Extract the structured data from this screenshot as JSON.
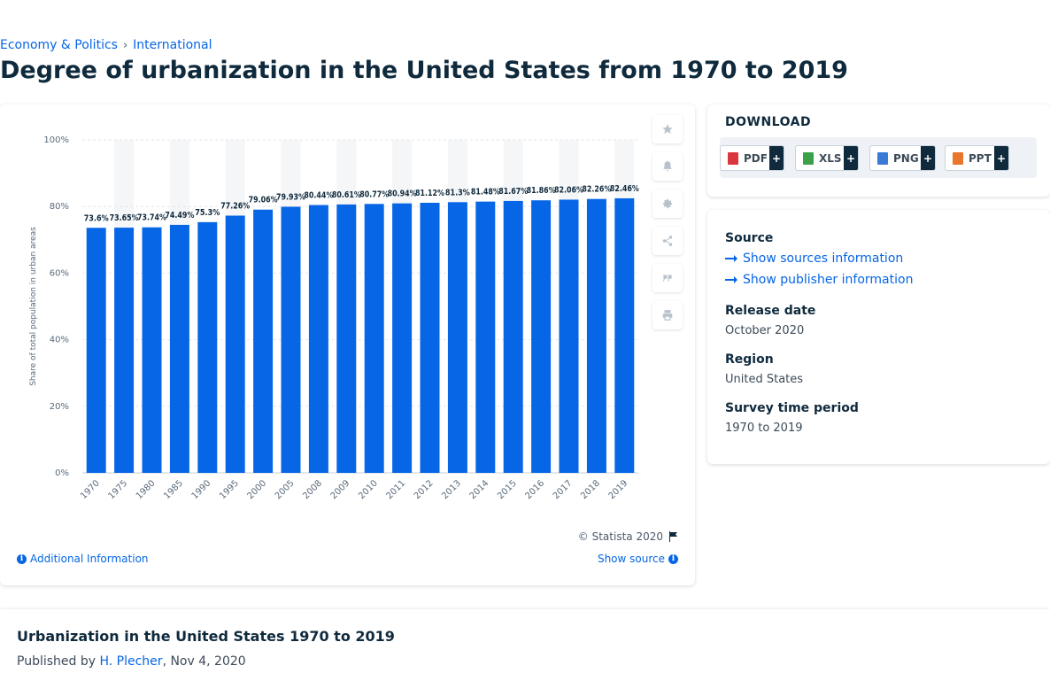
{
  "breadcrumb": {
    "items": [
      "Economy & Politics",
      "International"
    ],
    "separator": "›"
  },
  "page_title": "Degree of urbanization in the United States from 1970 to 2019",
  "chart_footer": {
    "copyright": "© Statista 2020",
    "additional_info": "Additional Information",
    "show_source": "Show source"
  },
  "side_tools": [
    "star-icon",
    "bell-icon",
    "gear-icon",
    "share-icon",
    "quote-icon",
    "print-icon"
  ],
  "download": {
    "title": "DOWNLOAD",
    "buttons": [
      {
        "label": "PDF",
        "icon": "pdf-file-icon",
        "color": "#d9363e",
        "plus": "+"
      },
      {
        "label": "XLS",
        "icon": "xls-file-icon",
        "color": "#3aa14a",
        "plus": "+"
      },
      {
        "label": "PNG",
        "icon": "png-file-icon",
        "color": "#3a7bd5",
        "plus": "+"
      },
      {
        "label": "PPT",
        "icon": "ppt-file-icon",
        "color": "#e8762c",
        "plus": "+"
      }
    ]
  },
  "meta": {
    "source_label": "Source",
    "show_sources": "Show sources information",
    "show_publisher": "Show publisher information",
    "release_label": "Release date",
    "release_value": "October 2020",
    "region_label": "Region",
    "region_value": "United States",
    "period_label": "Survey time period",
    "period_value": "1970 to 2019"
  },
  "bottom": {
    "title": "Urbanization in the United States 1970 to 2019",
    "published_prefix": "Published by",
    "author": "H. Plecher",
    "date": ", Nov 4, 2020"
  },
  "colors": {
    "bar": "#0666e5",
    "accent": "#0666e5",
    "text": "#0f2a3d",
    "band": "#f5f6f8"
  },
  "chart_data": {
    "type": "bar",
    "title": "",
    "xlabel": "",
    "ylabel": "Share of total population in urban areas",
    "ylim": [
      0,
      100
    ],
    "y_ticks": [
      "0%",
      "20%",
      "40%",
      "60%",
      "80%",
      "100%"
    ],
    "y_tick_values": [
      0,
      20,
      40,
      60,
      80,
      100
    ],
    "grid": true,
    "categories": [
      "1970",
      "1975",
      "1980",
      "1985",
      "1990",
      "1995",
      "2000",
      "2005",
      "2008",
      "2009",
      "2010",
      "2011",
      "2012",
      "2013",
      "2014",
      "2015",
      "2016",
      "2017",
      "2018",
      "2019"
    ],
    "values": [
      73.6,
      73.65,
      73.74,
      74.49,
      75.3,
      77.26,
      79.06,
      79.93,
      80.44,
      80.61,
      80.77,
      80.94,
      81.12,
      81.3,
      81.48,
      81.67,
      81.86,
      82.06,
      82.26,
      82.46
    ],
    "labels": [
      "73.6%",
      "73.65%",
      "73.74%",
      "74.49%",
      "75.3%",
      "77.26%",
      "79.06%",
      "79.93%",
      "80.44%",
      "80.61%",
      "80.77%",
      "80.94%",
      "81.12%",
      "81.3%",
      "81.48%",
      "81.67%",
      "81.86%",
      "82.06%",
      "82.26%",
      "82.46%"
    ]
  }
}
